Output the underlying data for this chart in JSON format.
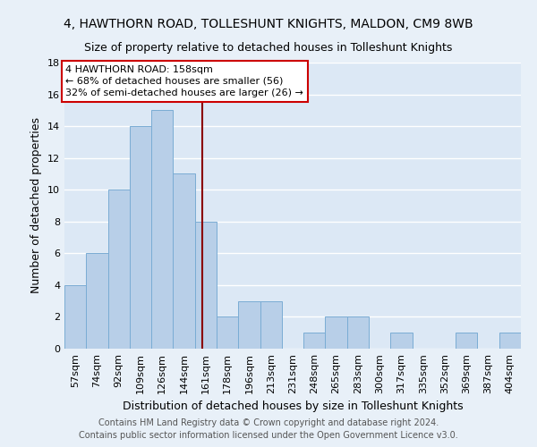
{
  "title1": "4, HAWTHORN ROAD, TOLLESHUNT KNIGHTS, MALDON, CM9 8WB",
  "title2": "Size of property relative to detached houses in Tolleshunt Knights",
  "xlabel": "Distribution of detached houses by size in Tolleshunt Knights",
  "ylabel": "Number of detached properties",
  "footer1": "Contains HM Land Registry data © Crown copyright and database right 2024.",
  "footer2": "Contains public sector information licensed under the Open Government Licence v3.0.",
  "bin_labels": [
    "57sqm",
    "74sqm",
    "92sqm",
    "109sqm",
    "126sqm",
    "144sqm",
    "161sqm",
    "178sqm",
    "196sqm",
    "213sqm",
    "231sqm",
    "248sqm",
    "265sqm",
    "283sqm",
    "300sqm",
    "317sqm",
    "335sqm",
    "352sqm",
    "369sqm",
    "387sqm",
    "404sqm"
  ],
  "bar_values": [
    4,
    6,
    10,
    14,
    15,
    11,
    8,
    2,
    3,
    3,
    0,
    1,
    2,
    2,
    0,
    1,
    0,
    0,
    1,
    0,
    1
  ],
  "bar_color": "#b8cfe8",
  "bar_edge_color": "#7aacd4",
  "vline_color": "#8b0000",
  "annotation_box_edge_color": "#cc0000",
  "annotation_line1": "4 HAWTHORN ROAD: 158sqm",
  "annotation_line2": "← 68% of detached houses are smaller (56)",
  "annotation_line3": "32% of semi-detached houses are larger (26) →",
  "ylim": [
    0,
    18
  ],
  "yticks": [
    0,
    2,
    4,
    6,
    8,
    10,
    12,
    14,
    16,
    18
  ],
  "background_color": "#dce8f5",
  "fig_background_color": "#e8f0f8",
  "grid_color": "#ffffff",
  "title1_fontsize": 10,
  "title2_fontsize": 9,
  "xlabel_fontsize": 9,
  "ylabel_fontsize": 9,
  "tick_fontsize": 8,
  "annotation_fontsize": 8,
  "footer_fontsize": 7
}
